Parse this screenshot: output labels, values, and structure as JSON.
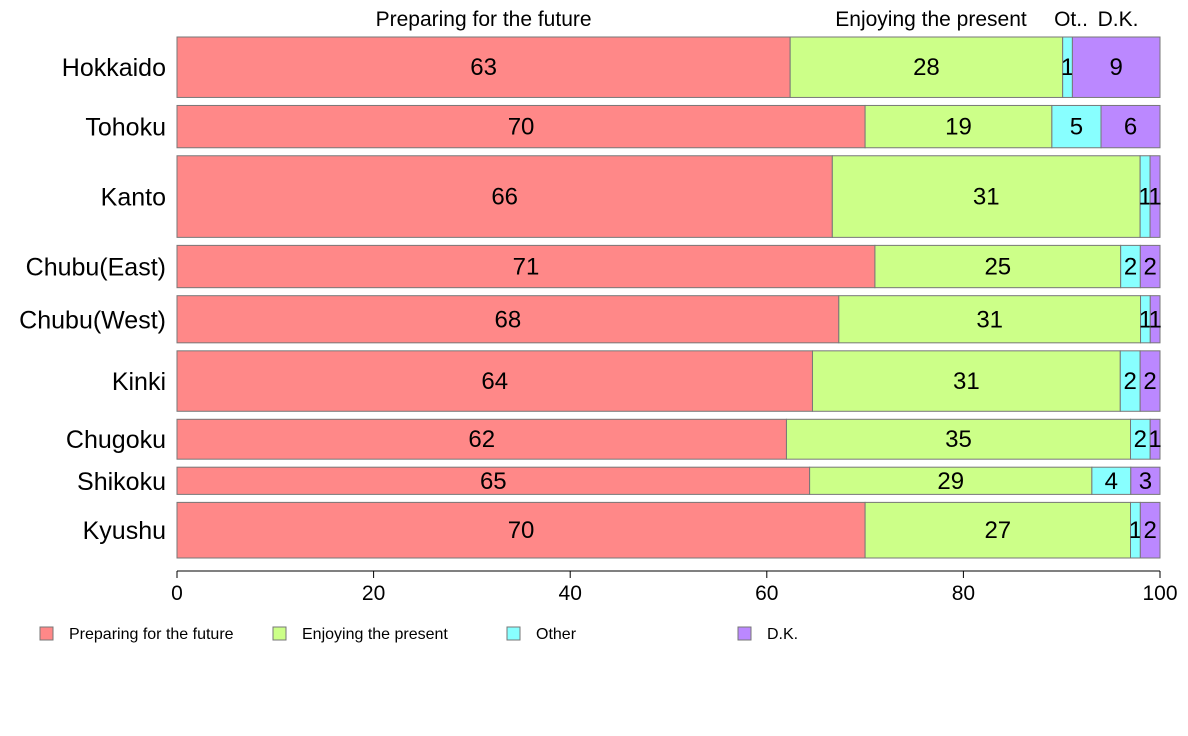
{
  "chart_data": {
    "type": "bar",
    "orientation": "horizontal",
    "stacked": true,
    "categories": [
      "Hokkaido",
      "Tohoku",
      "Kanto",
      "Chubu(East)",
      "Chubu(West)",
      "Kinki",
      "Chugoku",
      "Shikoku",
      "Kyushu"
    ],
    "category_weights": [
      1,
      0.7,
      1.35,
      0.7,
      0.78,
      1,
      0.66,
      0.45,
      0.92
    ],
    "series": [
      {
        "name": "Preparing for the future",
        "color": "#ff8888",
        "values": [
          63,
          70,
          66,
          71,
          68,
          64,
          62,
          65,
          70
        ]
      },
      {
        "name": "Enjoying the present",
        "color": "#ccff88",
        "values": [
          28,
          19,
          31,
          25,
          31,
          31,
          35,
          29,
          27
        ]
      },
      {
        "name": "Other",
        "color": "#88ffff",
        "values": [
          1,
          5,
          1,
          2,
          1,
          2,
          2,
          4,
          1
        ]
      },
      {
        "name": "D.K.",
        "color": "#bb88ff",
        "values": [
          9,
          6,
          1,
          2,
          1,
          2,
          1,
          3,
          2
        ]
      }
    ],
    "value_labels": [
      [
        "63",
        "28",
        "1",
        "9"
      ],
      [
        "70",
        "19",
        "5",
        "6"
      ],
      [
        "66",
        "31",
        "1",
        "1"
      ],
      [
        "71",
        "25",
        "2",
        "2"
      ],
      [
        "68",
        "31",
        "1",
        "1"
      ],
      [
        "64",
        "31",
        "2",
        "2"
      ],
      [
        "62",
        "35",
        "2",
        "1"
      ],
      [
        "65",
        "29",
        "4",
        "3"
      ],
      [
        "70",
        "27",
        "1",
        "2"
      ]
    ],
    "top_labels": [
      "Preparing for the future",
      "Enjoying the present",
      "Ot..",
      "D.K."
    ],
    "xlim": [
      0,
      100
    ],
    "xticks": [
      "0",
      "20",
      "40",
      "60",
      "80",
      "100"
    ],
    "grid": false,
    "legend_position": "bottom-left"
  }
}
